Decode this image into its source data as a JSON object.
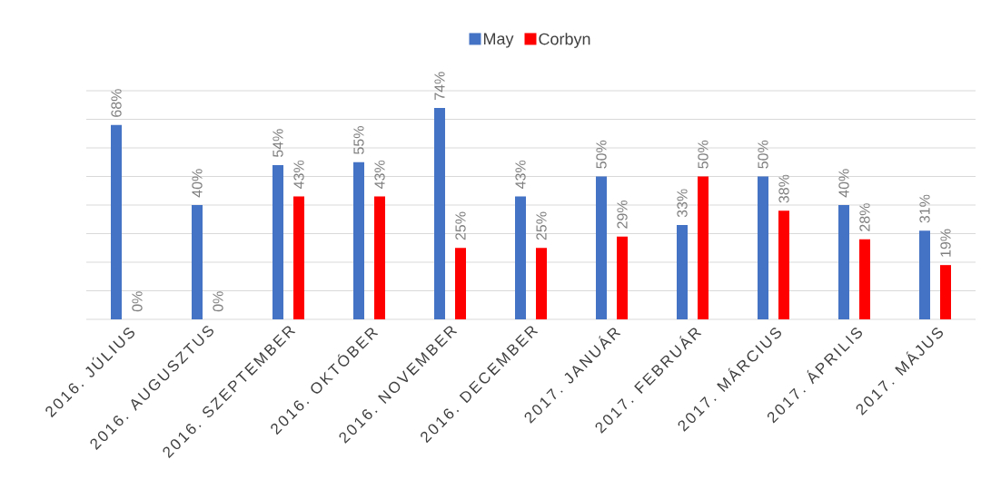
{
  "chart_data": {
    "type": "bar",
    "categories": [
      "2016. JÚLIUS",
      "2016. AUGUSZTUS",
      "2016. SZEPTEMBER",
      "2016. OKTÓBER",
      "2016. NOVEMBER",
      "2016. DECEMBER",
      "2017. JANUÁR",
      "2017. FEBRUÁR",
      "2017. MÁRCIUS",
      "2017. ÁPRILIS",
      "2017. MÁJUS"
    ],
    "series": [
      {
        "name": "May",
        "color": "#4472c4",
        "values": [
          68,
          40,
          54,
          55,
          74,
          43,
          50,
          33,
          50,
          40,
          31
        ],
        "value_labels": [
          "68%",
          "40%",
          "54%",
          "55%",
          "74%",
          "43%",
          "50%",
          "33%",
          "50%",
          "40%",
          "31%"
        ]
      },
      {
        "name": "Corbyn",
        "color": "#ff0000",
        "values": [
          0,
          0,
          43,
          43,
          25,
          25,
          29,
          50,
          38,
          28,
          19
        ],
        "value_labels": [
          "0%",
          "0%",
          "43%",
          "43%",
          "25%",
          "25%",
          "29%",
          "50%",
          "38%",
          "28%",
          "19%"
        ]
      }
    ],
    "ylim": [
      0,
      80
    ],
    "yticks": [
      {
        "value": 0,
        "label": null
      },
      {
        "value": 10,
        "label": null
      },
      {
        "value": 20,
        "label": null
      },
      {
        "value": 30,
        "label": null
      },
      {
        "value": 40,
        "label": null
      },
      {
        "value": 50,
        "label": null
      },
      {
        "value": 60,
        "label": null
      },
      {
        "value": 70,
        "label": null
      },
      {
        "value": 80,
        "label": null
      }
    ],
    "tick_labels": "x",
    "grid": "y",
    "legend": "top"
  }
}
